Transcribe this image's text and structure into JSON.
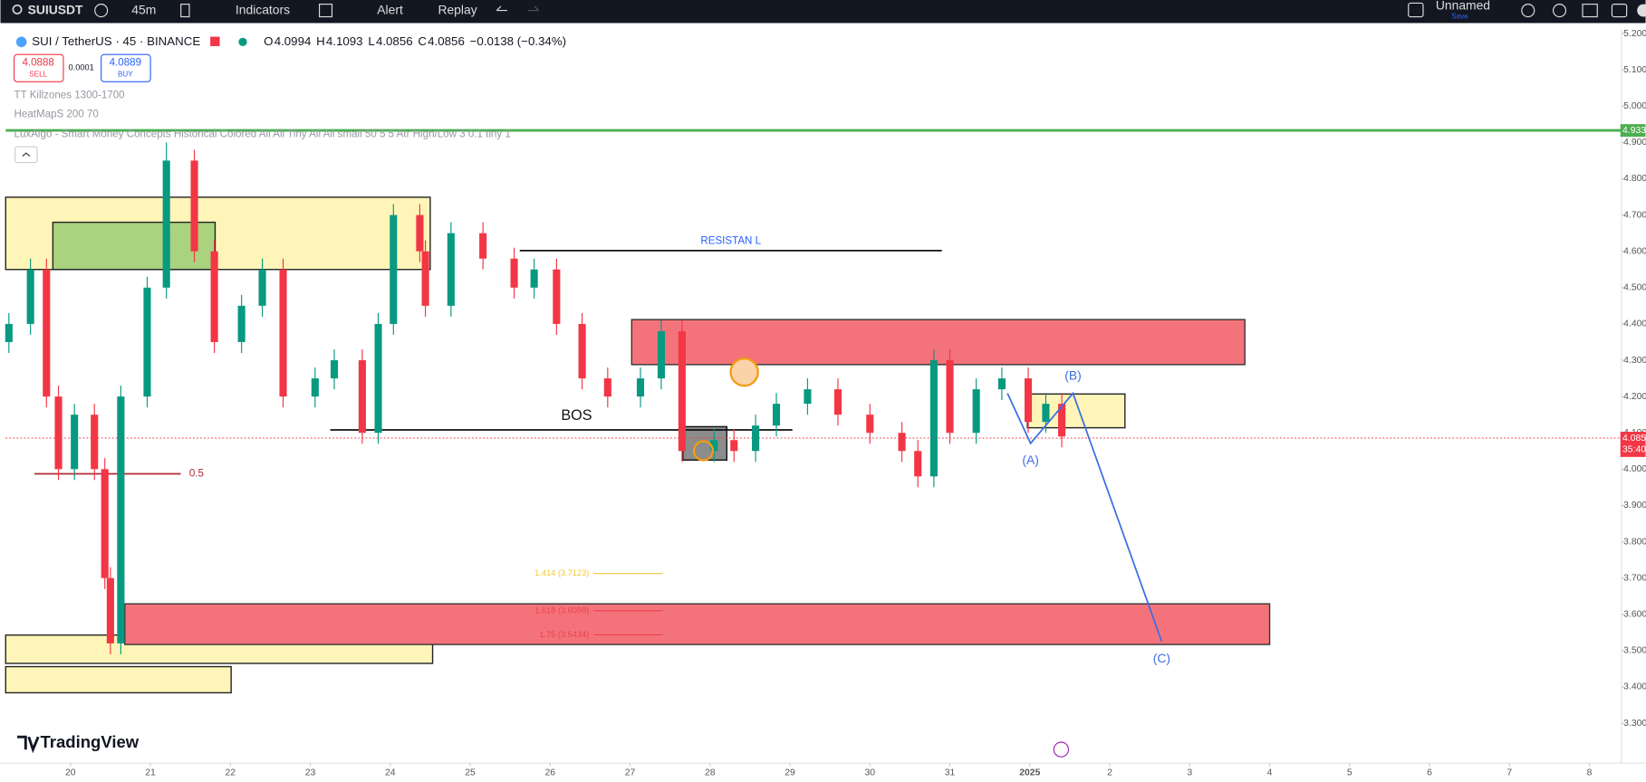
{
  "toolbar": {
    "symbol": "SUIUSDT",
    "interval": "45m",
    "indicators": "Indicators",
    "alert": "Alert",
    "replay": "Replay",
    "layout": "Unnamed",
    "save": "Save"
  },
  "legend": {
    "symbol": "SUI / TetherUS · 45 · BINANCE",
    "ohlc": [
      {
        "key": "O",
        "value": "4.0994"
      },
      {
        "key": "H",
        "value": "4.1093"
      },
      {
        "key": "L",
        "value": "4.0856"
      },
      {
        "key": "C",
        "value": "4.0856"
      }
    ],
    "change": "−0.0138 (−0.34%)",
    "sell": {
      "price": "4.0888",
      "label": "SELL"
    },
    "spread": "0.0001",
    "buy": {
      "price": "4.0889",
      "label": "BUY"
    },
    "studies": [
      "TT Killzones 1300-1700",
      "HeatMapS 200 70",
      "LuxAlgo - Smart Money Concepts Historical Colored All All Tiny All All small 50 5 5 Atr High/Low 3 0.1 tiny 1"
    ]
  },
  "branding": "TradingView",
  "chart_data": {
    "type": "candlestick",
    "x": [
      -0.77,
      -0.5,
      -0.3,
      -0.15,
      0.05,
      0.3,
      0.43,
      0.5,
      0.63,
      0.96,
      1.2,
      1.55,
      1.8,
      2.14,
      2.4,
      2.66,
      3.06,
      3.3,
      3.65,
      3.85,
      4.04,
      4.37,
      4.44,
      4.76,
      5.16,
      5.55,
      5.8,
      6.08,
      6.4,
      6.72,
      7.13,
      7.39,
      7.65,
      8.05,
      8.3,
      8.57,
      8.83,
      9.22,
      9.6,
      10.0,
      10.4,
      10.6,
      10.8,
      11.0,
      11.33,
      11.65,
      11.98,
      12.2,
      12.4
    ],
    "open": [
      4.35,
      4.4,
      4.55,
      4.2,
      4.0,
      4.15,
      4.0,
      3.7,
      3.52,
      4.2,
      4.5,
      4.85,
      4.6,
      4.35,
      4.45,
      4.55,
      4.2,
      4.25,
      4.3,
      4.1,
      4.4,
      4.7,
      4.6,
      4.45,
      4.65,
      4.58,
      4.5,
      4.55,
      4.4,
      4.25,
      4.2,
      4.25,
      4.38,
      4.05,
      4.08,
      4.05,
      4.12,
      4.18,
      4.22,
      4.15,
      4.1,
      4.05,
      3.98,
      4.3,
      4.1,
      4.22,
      4.25,
      4.13,
      4.18
    ],
    "high": [
      4.43,
      4.58,
      4.58,
      4.23,
      4.18,
      4.18,
      4.03,
      3.73,
      4.23,
      4.53,
      4.9,
      4.88,
      4.63,
      4.48,
      4.58,
      4.58,
      4.28,
      4.33,
      4.33,
      4.43,
      4.73,
      4.73,
      4.63,
      4.68,
      4.68,
      4.61,
      4.58,
      4.58,
      4.43,
      4.28,
      4.28,
      4.41,
      4.41,
      4.11,
      4.11,
      4.15,
      4.21,
      4.25,
      4.25,
      4.18,
      4.13,
      4.08,
      4.33,
      4.33,
      4.25,
      4.28,
      4.28,
      4.21,
      4.21
    ],
    "low": [
      4.32,
      4.37,
      4.17,
      3.97,
      3.97,
      3.97,
      3.67,
      3.49,
      3.49,
      4.17,
      4.47,
      4.57,
      4.32,
      4.32,
      4.42,
      4.17,
      4.17,
      4.22,
      4.07,
      4.07,
      4.37,
      4.57,
      4.42,
      4.42,
      4.55,
      4.47,
      4.47,
      4.37,
      4.22,
      4.17,
      4.17,
      4.22,
      4.02,
      4.02,
      4.02,
      4.02,
      4.09,
      4.15,
      4.12,
      4.07,
      4.02,
      3.95,
      3.95,
      4.07,
      4.07,
      4.19,
      4.1,
      4.1,
      4.06
    ],
    "close": [
      4.4,
      4.55,
      4.2,
      4.0,
      4.15,
      4.0,
      3.7,
      3.52,
      4.2,
      4.5,
      4.85,
      4.6,
      4.35,
      4.45,
      4.55,
      4.2,
      4.25,
      4.3,
      4.1,
      4.4,
      4.7,
      4.6,
      4.45,
      4.65,
      4.58,
      4.5,
      4.55,
      4.4,
      4.25,
      4.2,
      4.25,
      4.38,
      4.05,
      4.08,
      4.05,
      4.12,
      4.18,
      4.22,
      4.15,
      4.1,
      4.05,
      3.98,
      4.3,
      4.1,
      4.22,
      4.25,
      4.13,
      4.18,
      4.09
    ],
    "up_color": "#089981",
    "down_color": "#f23645",
    "xlim": [
      -0.81,
      19.4
    ],
    "ylim": [
      3.2,
      5.21
    ],
    "xticks": [
      {
        "value": 0,
        "label": "20"
      },
      {
        "value": 1,
        "label": "21"
      },
      {
        "value": 2,
        "label": "22"
      },
      {
        "value": 3,
        "label": "23"
      },
      {
        "value": 4,
        "label": "24"
      },
      {
        "value": 5,
        "label": "25"
      },
      {
        "value": 6,
        "label": "26"
      },
      {
        "value": 7,
        "label": "27"
      },
      {
        "value": 8,
        "label": "28"
      },
      {
        "value": 9,
        "label": "29"
      },
      {
        "value": 10,
        "label": "30"
      },
      {
        "value": 11,
        "label": "31"
      },
      {
        "value": 12,
        "label": "2025"
      },
      {
        "value": 13,
        "label": "2"
      },
      {
        "value": 14,
        "label": "3"
      },
      {
        "value": 15,
        "label": "4"
      },
      {
        "value": 16,
        "label": "5"
      },
      {
        "value": 17,
        "label": "6"
      },
      {
        "value": 18,
        "label": "7"
      },
      {
        "value": 19,
        "label": "8"
      }
    ],
    "yticks": [
      {
        "value": 5.2,
        "label": "5.200"
      },
      {
        "value": 5.1,
        "label": "5.100"
      },
      {
        "value": 5.0,
        "label": "5.000"
      },
      {
        "value": 4.9,
        "label": "4.900"
      },
      {
        "value": 4.8,
        "label": "4.800"
      },
      {
        "value": 4.7,
        "label": "4.700"
      },
      {
        "value": 4.6,
        "label": "4.600"
      },
      {
        "value": 4.5,
        "label": "4.500"
      },
      {
        "value": 4.4,
        "label": "4.400"
      },
      {
        "value": 4.3,
        "label": "4.300"
      },
      {
        "value": 4.2,
        "label": "4.200"
      },
      {
        "value": 4.1,
        "label": "4.100"
      },
      {
        "value": 4.0,
        "label": "4.000"
      },
      {
        "value": 3.9,
        "label": "3.900"
      },
      {
        "value": 3.8,
        "label": "3.800"
      },
      {
        "value": 3.7,
        "label": "3.700"
      },
      {
        "value": 3.6,
        "label": "3.600"
      },
      {
        "value": 3.5,
        "label": "3.500"
      },
      {
        "value": 3.4,
        "label": "3.400"
      },
      {
        "value": 3.3,
        "label": "3.300"
      }
    ],
    "zones": [
      {
        "x": [
          -0.81,
          4.5
        ],
        "y": [
          4.55,
          4.749
        ],
        "fill": "#fff5b8",
        "stroke": "#222"
      },
      {
        "x": [
          -0.22,
          1.81
        ],
        "y": [
          4.55,
          4.68
        ],
        "fill": "#a9d37e",
        "stroke": "#222"
      },
      {
        "x": [
          7.02,
          14.69
        ],
        "y": [
          4.288,
          4.412
        ],
        "fill": "#f4737b",
        "stroke": "#333"
      },
      {
        "x": [
          7.66,
          8.21
        ],
        "y": [
          4.025,
          4.117
        ],
        "fill": "#8c8c8c",
        "stroke": "#111"
      },
      {
        "x": [
          11.97,
          13.19
        ],
        "y": [
          4.114,
          4.207
        ],
        "fill": "#fff5b8",
        "stroke": "#222"
      },
      {
        "x": [
          -0.81,
          4.53
        ],
        "y": [
          3.465,
          3.543
        ],
        "fill": "#fff5b8",
        "stroke": "#222"
      },
      {
        "x": [
          -0.81,
          2.01
        ],
        "y": [
          3.384,
          3.456
        ],
        "fill": "#fff5b8",
        "stroke": "#222"
      },
      {
        "x": [
          0.68,
          15.0
        ],
        "y": [
          3.517,
          3.629
        ],
        "fill": "#f4737b",
        "stroke": "#333"
      }
    ],
    "segments": [
      {
        "x": [
          5.62,
          10.9
        ],
        "y": 4.602,
        "color": "#111",
        "label": "RESISTAN L",
        "label_color": "#2962ff"
      },
      {
        "x": [
          3.25,
          9.03
        ],
        "y": 4.108,
        "color": "#111",
        "label": "BOS",
        "label_color": "#111"
      },
      {
        "x": [
          -0.45,
          1.38
        ],
        "y": 3.987,
        "color": "#b22833",
        "label": "0.5",
        "label_color": "#b22833"
      }
    ],
    "fib": [
      {
        "value": 3.7123,
        "label": "1.414 (3.7123)",
        "color": "#f0c93a",
        "x": [
          6.54,
          7.41
        ]
      },
      {
        "value": 3.6098,
        "label": "1.618 (3.6098)",
        "color": "#e8434f",
        "x": [
          6.54,
          7.41
        ]
      },
      {
        "value": 3.5434,
        "label": "1.75 (3.5434)",
        "color": "#e8434f",
        "x": [
          6.54,
          7.41
        ]
      }
    ],
    "wave": {
      "x": [
        11.72,
        12.01,
        12.54,
        13.65
      ],
      "y": [
        4.209,
        4.071,
        4.209,
        3.525
      ],
      "labels": [
        "(A)",
        "(B)",
        "(C)"
      ],
      "color": "#3a6fe0"
    },
    "price_lines": [
      {
        "value": 4.933,
        "label": "4.933",
        "color": "#4caf50"
      },
      {
        "value": 4.0856,
        "label": "4.085",
        "countdown": "35:40",
        "color": "#f23645"
      }
    ]
  }
}
